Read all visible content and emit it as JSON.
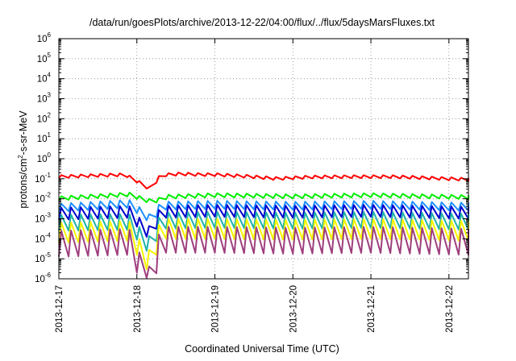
{
  "chart_data": {
    "type": "line",
    "title": "/data/run/goesPlots/archive/2013-12-22/04:00/flux/../flux/5daysMarsFluxes.txt",
    "xlabel": "Coordinated Universal Time (UTC)",
    "ylabel": "protons/cm²-s-sr-MeV",
    "ylabel_parts": {
      "pre": "protons/cm",
      "sup": "2",
      "post": "-s-sr-MeV"
    },
    "yscale": "log",
    "ylim": [
      1e-06,
      1000000.0
    ],
    "xlim_days": [
      0,
      5.25
    ],
    "x_ticks": [
      "2013-12-17",
      "2013-12-18",
      "2013-12-19",
      "2013-12-20",
      "2013-12-21",
      "2013-12-22"
    ],
    "y_tick_exponents": [
      -6,
      -5,
      -4,
      -3,
      -2,
      -1,
      0,
      1,
      2,
      3,
      4,
      5,
      6
    ],
    "y_tick_base": "10",
    "grid": true,
    "legend": "none",
    "sawtooth": {
      "period_hours": 3,
      "rise_fraction": 0.25
    },
    "series": [
      {
        "color": "#ff0000",
        "envelope": [
          [
            0.0,
            -0.82
          ],
          [
            0.85,
            -0.72
          ],
          [
            1.05,
            -1.15
          ],
          [
            1.18,
            -1.48
          ],
          [
            1.3,
            -0.75
          ],
          [
            1.55,
            -0.68
          ],
          [
            1.8,
            -0.72
          ],
          [
            2.0,
            -0.72
          ],
          [
            2.4,
            -0.8
          ],
          [
            2.8,
            -0.92
          ],
          [
            3.2,
            -0.84
          ],
          [
            3.8,
            -0.82
          ],
          [
            4.3,
            -0.82
          ],
          [
            5.25,
            -0.96
          ]
        ],
        "amplitude": 0.15
      },
      {
        "color": "#00ee00",
        "envelope": [
          [
            0.0,
            -1.88
          ],
          [
            0.9,
            -1.68
          ],
          [
            1.1,
            -1.95
          ],
          [
            1.2,
            -2.05
          ],
          [
            1.4,
            -1.8
          ],
          [
            2.0,
            -1.72
          ],
          [
            3.0,
            -1.78
          ],
          [
            4.0,
            -1.72
          ],
          [
            5.25,
            -1.82
          ]
        ],
        "amplitude": 0.2
      },
      {
        "color": "#1e90ff",
        "envelope": [
          [
            0.0,
            -2.25
          ],
          [
            0.9,
            -2.05
          ],
          [
            1.1,
            -2.6
          ],
          [
            1.2,
            -2.9
          ],
          [
            1.3,
            -2.15
          ],
          [
            2.0,
            -2.1
          ],
          [
            3.0,
            -2.15
          ],
          [
            4.0,
            -2.1
          ],
          [
            5.25,
            -2.2
          ]
        ],
        "amplitude": 0.4
      },
      {
        "color": "#0000cc",
        "envelope": [
          [
            0.0,
            -2.45
          ],
          [
            0.9,
            -2.35
          ],
          [
            1.1,
            -3.25
          ],
          [
            1.2,
            -3.45
          ],
          [
            1.3,
            -2.35
          ],
          [
            2.0,
            -2.3
          ],
          [
            3.0,
            -2.35
          ],
          [
            4.0,
            -2.3
          ],
          [
            5.25,
            -2.4
          ]
        ],
        "amplitude": 0.6
      },
      {
        "color": "#20b2aa",
        "envelope": [
          [
            0.0,
            -2.8
          ],
          [
            0.9,
            -2.75
          ],
          [
            1.1,
            -3.75
          ],
          [
            1.2,
            -3.95
          ],
          [
            1.3,
            -2.7
          ],
          [
            2.0,
            -2.65
          ],
          [
            3.0,
            -2.7
          ],
          [
            4.0,
            -2.65
          ],
          [
            5.25,
            -2.75
          ]
        ],
        "amplitude": 0.8
      },
      {
        "color": "#f5f500",
        "envelope": [
          [
            0.0,
            -3.2
          ],
          [
            0.9,
            -3.1
          ],
          [
            1.1,
            -4.5
          ],
          [
            1.2,
            -4.6
          ],
          [
            1.3,
            -3.0
          ],
          [
            2.0,
            -3.0
          ],
          [
            3.0,
            -3.05
          ],
          [
            4.0,
            -3.0
          ],
          [
            5.25,
            -3.1
          ]
        ],
        "amplitude": 1.0
      },
      {
        "color": "#9e3f7e",
        "envelope": [
          [
            0.0,
            -3.6
          ],
          [
            0.9,
            -3.5
          ],
          [
            1.1,
            -5.3
          ],
          [
            1.2,
            -5.45
          ],
          [
            1.3,
            -3.4
          ],
          [
            2.0,
            -3.4
          ],
          [
            3.0,
            -3.45
          ],
          [
            4.0,
            -3.4
          ],
          [
            5.25,
            -3.5
          ]
        ],
        "amplitude": 1.3
      }
    ]
  }
}
